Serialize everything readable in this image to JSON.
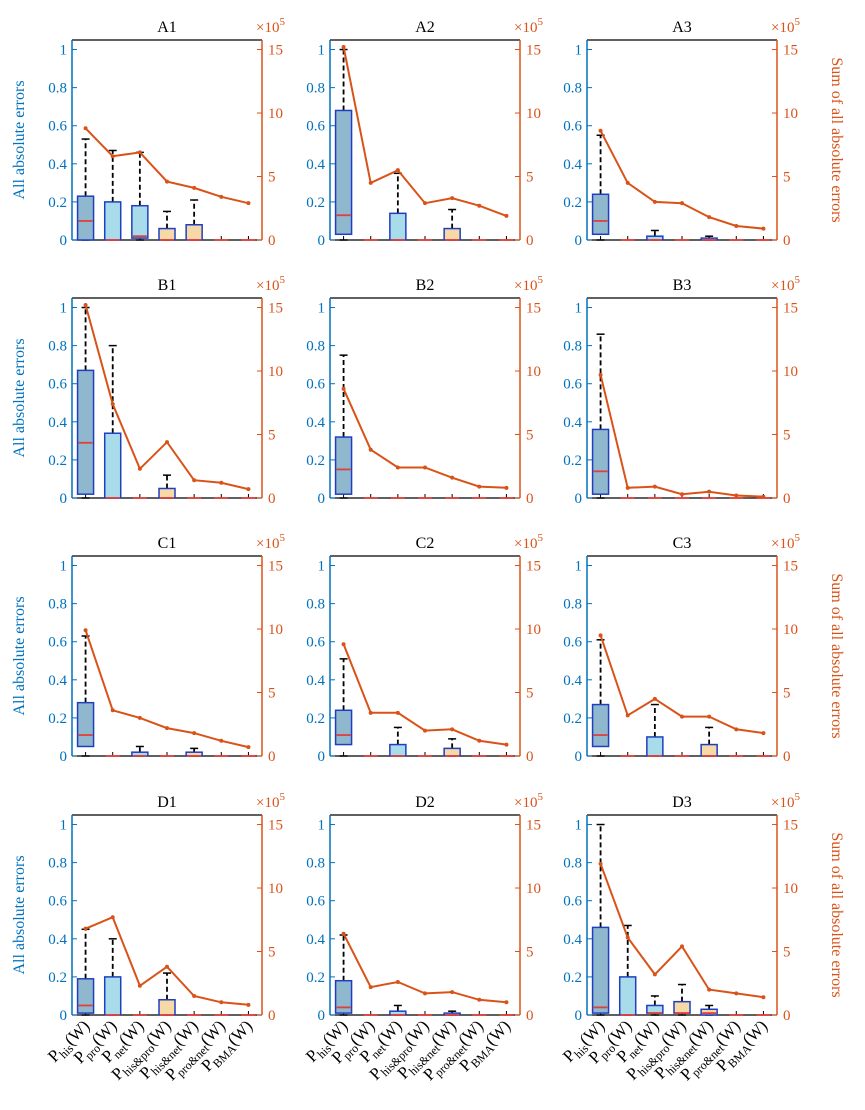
{
  "colors": {
    "left_axis": "#0072BD",
    "right_axis": "#D95319",
    "line": "#D95319",
    "box_edge": "#1F3FBF",
    "median": "#E0403A",
    "fill_his": "#8FB8CF",
    "fill_pro": "#A9DCEB",
    "fill_orange": "#F7D9A8",
    "whisker": "#000000"
  },
  "chart_data": {
    "type": "boxplot+line",
    "left_ylabel": "All absolute errors",
    "right_ylabel": "Sum of all absolute errors",
    "right_multiplier": "×10",
    "right_exponent": "5",
    "left_ylim": [
      0,
      1.05
    ],
    "left_ticks": [
      "0",
      "0.2",
      "0.4",
      "0.6",
      "0.8",
      "1"
    ],
    "right_ylim": [
      0,
      15.75
    ],
    "right_ticks": [
      "0",
      "5",
      "10",
      "15"
    ],
    "categories": [
      {
        "main": "P",
        "sub": "his",
        "suffix": "(W)"
      },
      {
        "main": "P",
        "sub": "pro",
        "suffix": "(W)"
      },
      {
        "main": "P",
        "sub": "net",
        "suffix": "(W)"
      },
      {
        "main": "P",
        "sub": "his&pro",
        "suffix": "(W)"
      },
      {
        "main": "P",
        "sub": "his&net",
        "suffix": "(W)"
      },
      {
        "main": "P",
        "sub": "pro&net",
        "suffix": "(W)"
      },
      {
        "main": "P",
        "sub": "BMA",
        "suffix": "(W)"
      }
    ],
    "panels": [
      {
        "title": "A1",
        "line": [
          8.8,
          6.6,
          6.9,
          4.6,
          4.1,
          3.4,
          2.9
        ],
        "boxes": [
          {
            "lo": 0,
            "q1": 0,
            "med": 0.1,
            "q3": 0.23,
            "hi": 0.53,
            "fill": "his"
          },
          {
            "lo": 0,
            "q1": 0,
            "med": 0,
            "q3": 0.2,
            "hi": 0.47,
            "fill": "pro"
          },
          {
            "lo": 0,
            "q1": 0.01,
            "med": 0.02,
            "q3": 0.18,
            "hi": 0.46,
            "fill": "pro"
          },
          {
            "lo": 0,
            "q1": 0,
            "med": 0,
            "q3": 0.06,
            "hi": 0.15,
            "fill": "orange"
          },
          {
            "lo": 0,
            "q1": 0,
            "med": 0,
            "q3": 0.08,
            "hi": 0.21,
            "fill": "orange"
          },
          {
            "lo": 0,
            "q1": 0,
            "med": 0,
            "q3": 0,
            "hi": 0,
            "fill": "none"
          },
          {
            "lo": 0,
            "q1": 0,
            "med": 0,
            "q3": 0,
            "hi": 0,
            "fill": "none"
          }
        ]
      },
      {
        "title": "A2",
        "line": [
          15.2,
          4.5,
          5.5,
          2.9,
          3.3,
          2.7,
          1.9
        ],
        "boxes": [
          {
            "lo": 0,
            "q1": 0.03,
            "med": 0.13,
            "q3": 0.68,
            "hi": 1.0,
            "fill": "his"
          },
          {
            "lo": 0,
            "q1": 0,
            "med": 0,
            "q3": 0,
            "hi": 0,
            "fill": "none"
          },
          {
            "lo": 0,
            "q1": 0,
            "med": 0,
            "q3": 0.14,
            "hi": 0.35,
            "fill": "pro"
          },
          {
            "lo": 0,
            "q1": 0,
            "med": 0,
            "q3": 0,
            "hi": 0,
            "fill": "none"
          },
          {
            "lo": 0,
            "q1": 0,
            "med": 0,
            "q3": 0.06,
            "hi": 0.16,
            "fill": "orange"
          },
          {
            "lo": 0,
            "q1": 0,
            "med": 0,
            "q3": 0,
            "hi": 0,
            "fill": "none"
          },
          {
            "lo": 0,
            "q1": 0,
            "med": 0,
            "q3": 0,
            "hi": 0,
            "fill": "none"
          }
        ]
      },
      {
        "title": "A3",
        "line": [
          8.6,
          4.5,
          3.0,
          2.9,
          1.8,
          1.1,
          0.9
        ],
        "boxes": [
          {
            "lo": 0,
            "q1": 0.03,
            "med": 0.1,
            "q3": 0.24,
            "hi": 0.55,
            "fill": "his"
          },
          {
            "lo": 0,
            "q1": 0,
            "med": 0,
            "q3": 0,
            "hi": 0,
            "fill": "none"
          },
          {
            "lo": 0,
            "q1": 0,
            "med": 0,
            "q3": 0.02,
            "hi": 0.05,
            "fill": "pro"
          },
          {
            "lo": 0,
            "q1": 0,
            "med": 0,
            "q3": 0,
            "hi": 0,
            "fill": "none"
          },
          {
            "lo": 0,
            "q1": 0,
            "med": 0,
            "q3": 0.01,
            "hi": 0.02,
            "fill": "orange"
          },
          {
            "lo": 0,
            "q1": 0,
            "med": 0,
            "q3": 0,
            "hi": 0,
            "fill": "none"
          },
          {
            "lo": 0,
            "q1": 0,
            "med": 0,
            "q3": 0,
            "hi": 0,
            "fill": "none"
          }
        ]
      },
      {
        "title": "B1",
        "line": [
          15.2,
          7.4,
          2.3,
          4.4,
          1.4,
          1.2,
          0.7
        ],
        "boxes": [
          {
            "lo": 0,
            "q1": 0.02,
            "med": 0.29,
            "q3": 0.67,
            "hi": 1.0,
            "fill": "his"
          },
          {
            "lo": 0,
            "q1": 0,
            "med": 0,
            "q3": 0.34,
            "hi": 0.8,
            "fill": "pro"
          },
          {
            "lo": 0,
            "q1": 0,
            "med": 0,
            "q3": 0,
            "hi": 0,
            "fill": "none"
          },
          {
            "lo": 0,
            "q1": 0,
            "med": 0,
            "q3": 0.05,
            "hi": 0.12,
            "fill": "orange"
          },
          {
            "lo": 0,
            "q1": 0,
            "med": 0,
            "q3": 0,
            "hi": 0,
            "fill": "none"
          },
          {
            "lo": 0,
            "q1": 0,
            "med": 0,
            "q3": 0,
            "hi": 0,
            "fill": "none"
          },
          {
            "lo": 0,
            "q1": 0,
            "med": 0,
            "q3": 0,
            "hi": 0,
            "fill": "none"
          }
        ]
      },
      {
        "title": "B2",
        "line": [
          8.6,
          3.8,
          2.4,
          2.4,
          1.6,
          0.9,
          0.8
        ],
        "boxes": [
          {
            "lo": 0,
            "q1": 0.02,
            "med": 0.15,
            "q3": 0.32,
            "hi": 0.75,
            "fill": "his"
          },
          {
            "lo": 0,
            "q1": 0,
            "med": 0,
            "q3": 0,
            "hi": 0,
            "fill": "none"
          },
          {
            "lo": 0,
            "q1": 0,
            "med": 0,
            "q3": 0,
            "hi": 0,
            "fill": "none"
          },
          {
            "lo": 0,
            "q1": 0,
            "med": 0,
            "q3": 0,
            "hi": 0,
            "fill": "none"
          },
          {
            "lo": 0,
            "q1": 0,
            "med": 0,
            "q3": 0,
            "hi": 0,
            "fill": "none"
          },
          {
            "lo": 0,
            "q1": 0,
            "med": 0,
            "q3": 0,
            "hi": 0,
            "fill": "none"
          },
          {
            "lo": 0,
            "q1": 0,
            "med": 0,
            "q3": 0,
            "hi": 0,
            "fill": "none"
          }
        ]
      },
      {
        "title": "B3",
        "line": [
          9.7,
          0.8,
          0.9,
          0.3,
          0.5,
          0.2,
          0.1
        ],
        "boxes": [
          {
            "lo": 0,
            "q1": 0.02,
            "med": 0.14,
            "q3": 0.36,
            "hi": 0.86,
            "fill": "his"
          },
          {
            "lo": 0,
            "q1": 0,
            "med": 0,
            "q3": 0,
            "hi": 0,
            "fill": "none"
          },
          {
            "lo": 0,
            "q1": 0,
            "med": 0,
            "q3": 0,
            "hi": 0,
            "fill": "none"
          },
          {
            "lo": 0,
            "q1": 0,
            "med": 0,
            "q3": 0,
            "hi": 0,
            "fill": "none"
          },
          {
            "lo": 0,
            "q1": 0,
            "med": 0,
            "q3": 0,
            "hi": 0,
            "fill": "none"
          },
          {
            "lo": 0,
            "q1": 0,
            "med": 0,
            "q3": 0,
            "hi": 0,
            "fill": "none"
          },
          {
            "lo": 0,
            "q1": 0,
            "med": 0,
            "q3": 0,
            "hi": 0,
            "fill": "none"
          }
        ]
      },
      {
        "title": "C1",
        "line": [
          9.9,
          3.6,
          3.0,
          2.2,
          1.8,
          1.2,
          0.7
        ],
        "boxes": [
          {
            "lo": 0,
            "q1": 0.05,
            "med": 0.11,
            "q3": 0.28,
            "hi": 0.63,
            "fill": "his"
          },
          {
            "lo": 0,
            "q1": 0,
            "med": 0,
            "q3": 0,
            "hi": 0,
            "fill": "none"
          },
          {
            "lo": 0,
            "q1": 0,
            "med": 0,
            "q3": 0.02,
            "hi": 0.05,
            "fill": "pro"
          },
          {
            "lo": 0,
            "q1": 0,
            "med": 0,
            "q3": 0,
            "hi": 0,
            "fill": "none"
          },
          {
            "lo": 0,
            "q1": 0,
            "med": 0,
            "q3": 0.02,
            "hi": 0.04,
            "fill": "orange"
          },
          {
            "lo": 0,
            "q1": 0,
            "med": 0,
            "q3": 0,
            "hi": 0,
            "fill": "none"
          },
          {
            "lo": 0,
            "q1": 0,
            "med": 0,
            "q3": 0,
            "hi": 0,
            "fill": "none"
          }
        ]
      },
      {
        "title": "C2",
        "line": [
          8.8,
          3.4,
          3.4,
          2.0,
          2.1,
          1.2,
          0.9
        ],
        "boxes": [
          {
            "lo": 0,
            "q1": 0.06,
            "med": 0.11,
            "q3": 0.24,
            "hi": 0.51,
            "fill": "his"
          },
          {
            "lo": 0,
            "q1": 0,
            "med": 0,
            "q3": 0,
            "hi": 0,
            "fill": "none"
          },
          {
            "lo": 0,
            "q1": 0,
            "med": 0,
            "q3": 0.06,
            "hi": 0.15,
            "fill": "pro"
          },
          {
            "lo": 0,
            "q1": 0,
            "med": 0,
            "q3": 0,
            "hi": 0,
            "fill": "none"
          },
          {
            "lo": 0,
            "q1": 0,
            "med": 0,
            "q3": 0.04,
            "hi": 0.09,
            "fill": "orange"
          },
          {
            "lo": 0,
            "q1": 0,
            "med": 0,
            "q3": 0,
            "hi": 0,
            "fill": "none"
          },
          {
            "lo": 0,
            "q1": 0,
            "med": 0,
            "q3": 0,
            "hi": 0,
            "fill": "none"
          }
        ]
      },
      {
        "title": "C3",
        "line": [
          9.5,
          3.2,
          4.5,
          3.1,
          3.1,
          2.1,
          1.8
        ],
        "boxes": [
          {
            "lo": 0,
            "q1": 0.05,
            "med": 0.11,
            "q3": 0.27,
            "hi": 0.61,
            "fill": "his"
          },
          {
            "lo": 0,
            "q1": 0,
            "med": 0,
            "q3": 0,
            "hi": 0,
            "fill": "none"
          },
          {
            "lo": 0,
            "q1": 0,
            "med": 0,
            "q3": 0.1,
            "hi": 0.27,
            "fill": "pro"
          },
          {
            "lo": 0,
            "q1": 0,
            "med": 0,
            "q3": 0,
            "hi": 0,
            "fill": "none"
          },
          {
            "lo": 0,
            "q1": 0,
            "med": 0,
            "q3": 0.06,
            "hi": 0.15,
            "fill": "orange"
          },
          {
            "lo": 0,
            "q1": 0,
            "med": 0,
            "q3": 0,
            "hi": 0,
            "fill": "none"
          },
          {
            "lo": 0,
            "q1": 0,
            "med": 0,
            "q3": 0,
            "hi": 0,
            "fill": "none"
          }
        ]
      },
      {
        "title": "D1",
        "line": [
          6.8,
          7.7,
          2.3,
          3.8,
          1.5,
          1.0,
          0.8
        ],
        "boxes": [
          {
            "lo": 0,
            "q1": 0.01,
            "med": 0.05,
            "q3": 0.19,
            "hi": 0.45,
            "fill": "his"
          },
          {
            "lo": 0,
            "q1": 0,
            "med": 0,
            "q3": 0.2,
            "hi": 0.4,
            "fill": "pro"
          },
          {
            "lo": 0,
            "q1": 0,
            "med": 0,
            "q3": 0,
            "hi": 0,
            "fill": "none"
          },
          {
            "lo": 0,
            "q1": 0,
            "med": 0,
            "q3": 0.08,
            "hi": 0.22,
            "fill": "orange"
          },
          {
            "lo": 0,
            "q1": 0,
            "med": 0,
            "q3": 0,
            "hi": 0,
            "fill": "none"
          },
          {
            "lo": 0,
            "q1": 0,
            "med": 0,
            "q3": 0,
            "hi": 0,
            "fill": "none"
          },
          {
            "lo": 0,
            "q1": 0,
            "med": 0,
            "q3": 0,
            "hi": 0,
            "fill": "none"
          }
        ]
      },
      {
        "title": "D2",
        "line": [
          6.4,
          2.2,
          2.6,
          1.7,
          1.8,
          1.2,
          1.0
        ],
        "boxes": [
          {
            "lo": 0,
            "q1": 0.01,
            "med": 0.04,
            "q3": 0.18,
            "hi": 0.42,
            "fill": "his"
          },
          {
            "lo": 0,
            "q1": 0,
            "med": 0,
            "q3": 0,
            "hi": 0,
            "fill": "none"
          },
          {
            "lo": 0,
            "q1": 0,
            "med": 0,
            "q3": 0.02,
            "hi": 0.05,
            "fill": "pro"
          },
          {
            "lo": 0,
            "q1": 0,
            "med": 0,
            "q3": 0,
            "hi": 0,
            "fill": "none"
          },
          {
            "lo": 0,
            "q1": 0,
            "med": 0,
            "q3": 0.01,
            "hi": 0.02,
            "fill": "orange"
          },
          {
            "lo": 0,
            "q1": 0,
            "med": 0,
            "q3": 0,
            "hi": 0,
            "fill": "none"
          },
          {
            "lo": 0,
            "q1": 0,
            "med": 0,
            "q3": 0,
            "hi": 0,
            "fill": "none"
          }
        ]
      },
      {
        "title": "D3",
        "line": [
          11.9,
          6.1,
          3.2,
          5.4,
          2.0,
          1.7,
          1.4
        ],
        "boxes": [
          {
            "lo": 0,
            "q1": 0.01,
            "med": 0.04,
            "q3": 0.46,
            "hi": 1.0,
            "fill": "his"
          },
          {
            "lo": 0,
            "q1": 0,
            "med": 0,
            "q3": 0.2,
            "hi": 0.47,
            "fill": "pro"
          },
          {
            "lo": 0,
            "q1": 0.01,
            "med": 0.01,
            "q3": 0.05,
            "hi": 0.1,
            "fill": "pro"
          },
          {
            "lo": 0,
            "q1": 0.01,
            "med": 0.01,
            "q3": 0.07,
            "hi": 0.16,
            "fill": "orange"
          },
          {
            "lo": 0,
            "q1": 0,
            "med": 0.01,
            "q3": 0.03,
            "hi": 0.05,
            "fill": "orange"
          },
          {
            "lo": 0,
            "q1": 0,
            "med": 0,
            "q3": 0,
            "hi": 0,
            "fill": "none"
          },
          {
            "lo": 0,
            "q1": 0,
            "med": 0,
            "q3": 0,
            "hi": 0,
            "fill": "none"
          }
        ]
      }
    ]
  }
}
